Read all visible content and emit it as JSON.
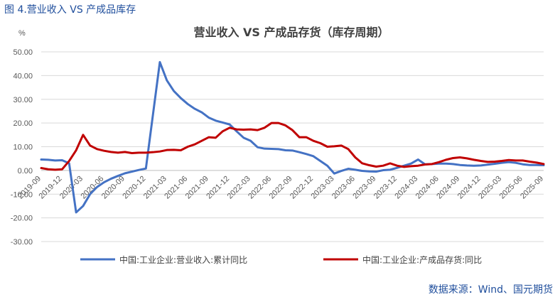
{
  "figure_title": "图 4.营业收入 VS 产成品库存",
  "source_note": "数据来源：Wind、国元期货",
  "chart_data": {
    "type": "line",
    "title": "营业收入 VS 产成品存货（库存周期）",
    "y_unit_label": "%",
    "ylim": [
      -30,
      50
    ],
    "y_ticks": [
      "-30.00",
      "-20.00",
      "-10.00",
      "0.00",
      "10.00",
      "20.00",
      "30.00",
      "40.00",
      "50.00"
    ],
    "x_tick_labels": [
      "2019-09",
      "2019-12",
      "2020-03",
      "2020-06",
      "2020-09",
      "2020-12",
      "2021-03",
      "2021-06",
      "2021-09",
      "2021-12",
      "2022-03",
      "2022-06",
      "2022-09",
      "2022-12",
      "2023-03",
      "2023-06",
      "2023-09",
      "2023-12",
      "2024-03",
      "2024-06",
      "2024-09",
      "2024-12",
      "2025-03",
      "2025-06",
      "2025-09"
    ],
    "x": [
      "2019-09",
      "2019-10",
      "2019-11",
      "2019-12",
      "2020-01",
      "2020-02",
      "2020-03",
      "2020-04",
      "2020-05",
      "2020-06",
      "2020-07",
      "2020-08",
      "2020-09",
      "2020-10",
      "2020-11",
      "2020-12",
      "2021-01",
      "2021-02",
      "2021-03",
      "2021-04",
      "2021-05",
      "2021-06",
      "2021-07",
      "2021-08",
      "2021-09",
      "2021-10",
      "2021-11",
      "2021-12",
      "2022-01",
      "2022-02",
      "2022-03",
      "2022-04",
      "2022-05",
      "2022-06",
      "2022-07",
      "2022-08",
      "2022-09",
      "2022-10",
      "2022-11",
      "2022-12",
      "2023-01",
      "2023-02",
      "2023-03",
      "2023-04",
      "2023-05",
      "2023-06",
      "2023-07",
      "2023-08",
      "2023-09",
      "2023-10",
      "2023-11",
      "2023-12",
      "2024-01",
      "2024-02",
      "2024-03",
      "2024-04",
      "2024-05",
      "2024-06",
      "2024-07",
      "2024-08",
      "2024-09",
      "2024-10",
      "2024-11",
      "2024-12",
      "2025-01",
      "2025-02",
      "2025-03",
      "2025-04",
      "2025-05",
      "2025-06",
      "2025-07",
      "2025-08",
      "2025-09"
    ],
    "series": [
      {
        "name": "中国:工业企业:营业收入:累计同比",
        "color": "#4472c4",
        "values": [
          4.6,
          4.5,
          4.2,
          4.3,
          3.0,
          -17.7,
          -15.0,
          -10.0,
          -7.0,
          -5.0,
          -3.5,
          -2.3,
          -1.2,
          -0.5,
          0.2,
          0.8,
          null,
          45.7,
          38.0,
          33.5,
          30.5,
          28.0,
          26.0,
          24.5,
          22.3,
          21.0,
          20.2,
          19.4,
          16.5,
          13.8,
          12.5,
          9.8,
          9.2,
          9.1,
          9.0,
          8.5,
          8.4,
          7.7,
          6.9,
          6.0,
          null,
          2.0,
          -1.3,
          -0.2,
          0.7,
          0.3,
          -0.2,
          -0.4,
          -0.5,
          0.1,
          0.3,
          1.1,
          null,
          2.9,
          4.6,
          2.6,
          2.7,
          2.9,
          2.9,
          2.7,
          2.3,
          2.1,
          2.0,
          2.1,
          null,
          2.8,
          3.2,
          3.5,
          3.2,
          2.6,
          2.3,
          2.3,
          2.2
        ]
      },
      {
        "name": "中国:工业企业:产成品存货:同比",
        "color": "#c00000",
        "values": [
          1.0,
          0.5,
          0.3,
          0.5,
          4.0,
          8.5,
          15.0,
          10.5,
          9.0,
          8.3,
          7.8,
          7.5,
          7.8,
          7.3,
          7.5,
          7.5,
          7.7,
          8.0,
          8.6,
          8.7,
          8.5,
          10.0,
          11.0,
          12.5,
          14.0,
          13.8,
          16.5,
          18.0,
          17.3,
          17.2,
          17.3,
          17.0,
          18.0,
          20.0,
          20.0,
          19.0,
          17.0,
          14.0,
          14.0,
          12.5,
          11.5,
          10.0,
          10.2,
          10.5,
          9.0,
          5.5,
          3.0,
          2.2,
          1.6,
          2.0,
          3.0,
          2.0,
          1.5,
          1.8,
          2.0,
          2.5,
          2.7,
          3.5,
          4.5,
          5.2,
          5.5,
          5.1,
          4.5,
          4.0,
          3.6,
          3.7,
          4.0,
          4.4,
          4.2,
          4.2,
          3.7,
          3.3,
          2.7
        ]
      }
    ],
    "legend_position": "bottom",
    "grid": "horizontal"
  }
}
